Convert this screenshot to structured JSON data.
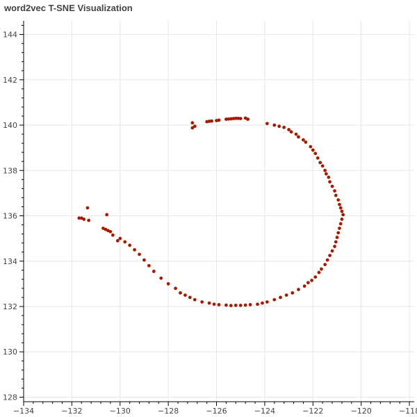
{
  "chart_data": {
    "type": "scatter",
    "title": "word2vec T-SNE Visualization",
    "xlabel": "",
    "ylabel": "",
    "xlim": [
      -134,
      -117.8
    ],
    "ylim": [
      127.8,
      144.6
    ],
    "xticks": [
      -134,
      -132,
      -130,
      -128,
      -126,
      -124,
      -122,
      -120,
      -118
    ],
    "yticks": [
      128,
      130,
      132,
      134,
      136,
      138,
      140,
      142,
      144
    ],
    "grid": true,
    "legend": "none",
    "marker_color": "#a31c00",
    "axis_color": "#000000",
    "grid_color": "#e6e6e6",
    "points": [
      [
        -127.0,
        140.1
      ],
      [
        -127.0,
        139.88
      ],
      [
        -126.9,
        139.95
      ],
      [
        -126.4,
        140.15
      ],
      [
        -126.3,
        140.17
      ],
      [
        -126.2,
        140.18
      ],
      [
        -126.0,
        140.2
      ],
      [
        -125.9,
        140.22
      ],
      [
        -125.6,
        140.26
      ],
      [
        -125.5,
        140.27
      ],
      [
        -125.4,
        140.28
      ],
      [
        -125.3,
        140.29
      ],
      [
        -125.2,
        140.3
      ],
      [
        -125.1,
        140.3
      ],
      [
        -125.0,
        140.29
      ],
      [
        -124.8,
        140.31
      ],
      [
        -124.7,
        140.26
      ],
      [
        -123.9,
        140.07
      ],
      [
        -123.6,
        140.0
      ],
      [
        -123.4,
        139.95
      ],
      [
        -123.2,
        139.9
      ],
      [
        -123.0,
        139.8
      ],
      [
        -122.9,
        139.7
      ],
      [
        -122.7,
        139.6
      ],
      [
        -122.6,
        139.48
      ],
      [
        -122.4,
        139.35
      ],
      [
        -122.3,
        139.25
      ],
      [
        -122.1,
        139.05
      ],
      [
        -122.0,
        138.9
      ],
      [
        -121.9,
        138.75
      ],
      [
        -121.8,
        138.55
      ],
      [
        -121.7,
        138.35
      ],
      [
        -121.6,
        138.2
      ],
      [
        -121.5,
        138.0
      ],
      [
        -121.45,
        137.85
      ],
      [
        -121.35,
        137.7
      ],
      [
        -121.3,
        137.5
      ],
      [
        -121.2,
        137.3
      ],
      [
        -121.1,
        137.1
      ],
      [
        -121.05,
        136.9
      ],
      [
        -120.95,
        136.7
      ],
      [
        -120.9,
        136.5
      ],
      [
        -120.85,
        136.35
      ],
      [
        -120.8,
        136.2
      ],
      [
        -120.75,
        136.05
      ],
      [
        -120.8,
        135.85
      ],
      [
        -120.85,
        135.65
      ],
      [
        -120.9,
        135.45
      ],
      [
        -120.95,
        135.25
      ],
      [
        -121.0,
        135.05
      ],
      [
        -121.05,
        134.85
      ],
      [
        -121.1,
        134.65
      ],
      [
        -121.2,
        134.45
      ],
      [
        -121.3,
        134.25
      ],
      [
        -121.4,
        134.05
      ],
      [
        -121.5,
        133.85
      ],
      [
        -121.65,
        133.65
      ],
      [
        -121.75,
        133.5
      ],
      [
        -121.9,
        133.3
      ],
      [
        -122.05,
        133.15
      ],
      [
        -122.2,
        133.05
      ],
      [
        -122.35,
        132.9
      ],
      [
        -122.6,
        132.75
      ],
      [
        -122.85,
        132.6
      ],
      [
        -123.1,
        132.5
      ],
      [
        -123.35,
        132.4
      ],
      [
        -123.6,
        132.3
      ],
      [
        -123.9,
        132.2
      ],
      [
        -124.1,
        132.15
      ],
      [
        -124.3,
        132.1
      ],
      [
        -124.6,
        132.08
      ],
      [
        -124.8,
        132.06
      ],
      [
        -125.0,
        132.05
      ],
      [
        -125.2,
        132.05
      ],
      [
        -125.4,
        132.04
      ],
      [
        -125.6,
        132.06
      ],
      [
        -125.9,
        132.08
      ],
      [
        -126.1,
        132.1
      ],
      [
        -126.3,
        132.15
      ],
      [
        -126.6,
        132.2
      ],
      [
        -126.9,
        132.3
      ],
      [
        -127.1,
        132.4
      ],
      [
        -127.3,
        132.5
      ],
      [
        -127.5,
        132.6
      ],
      [
        -127.7,
        132.8
      ],
      [
        -128.0,
        133.0
      ],
      [
        -128.3,
        133.25
      ],
      [
        -128.6,
        133.55
      ],
      [
        -128.8,
        133.8
      ],
      [
        -129.0,
        134.05
      ],
      [
        -129.2,
        134.3
      ],
      [
        -129.4,
        134.5
      ],
      [
        -129.6,
        134.7
      ],
      [
        -129.8,
        134.85
      ],
      [
        -130.0,
        135.0
      ],
      [
        -130.1,
        134.9
      ],
      [
        -130.3,
        135.15
      ],
      [
        -130.4,
        135.3
      ],
      [
        -130.5,
        135.35
      ],
      [
        -130.6,
        135.4
      ],
      [
        -130.7,
        135.45
      ],
      [
        -130.55,
        136.05
      ],
      [
        -131.3,
        135.8
      ],
      [
        -131.5,
        135.85
      ],
      [
        -131.6,
        135.9
      ],
      [
        -131.7,
        135.9
      ],
      [
        -131.35,
        136.35
      ]
    ]
  }
}
